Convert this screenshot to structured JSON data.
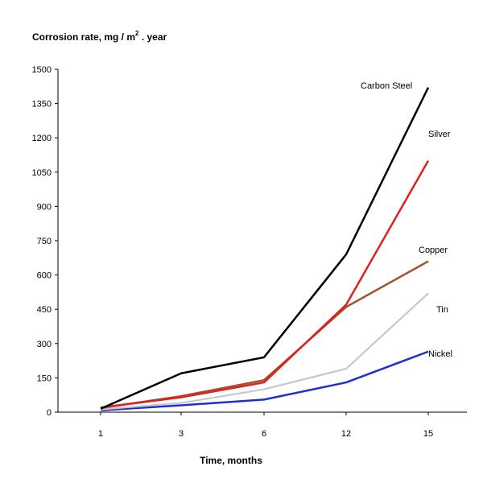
{
  "chart_data": {
    "type": "line",
    "ylabel": "Corrosion rate, mg / m",
    "ylabel_superscript": "2",
    "ylabel_suffix": " .  year",
    "xlabel": "Time, months",
    "categories": [
      "1",
      "3",
      "6",
      "12",
      "15"
    ],
    "ylim": [
      0,
      1500
    ],
    "yticks": [
      "0",
      "150",
      "300",
      "450",
      "600",
      "750",
      "900",
      "1050",
      "1200",
      "1350",
      "1500"
    ],
    "grid": false,
    "series": [
      {
        "name": "Carbon Steel",
        "values": [
          15,
          170,
          240,
          690,
          1420
        ],
        "color": "#000000"
      },
      {
        "name": "Silver",
        "values": [
          20,
          65,
          130,
          470,
          1100
        ],
        "color": "#e02020"
      },
      {
        "name": "Copper",
        "values": [
          18,
          70,
          140,
          460,
          660
        ],
        "color": "#a0522d"
      },
      {
        "name": "Tin",
        "values": [
          12,
          40,
          100,
          190,
          520
        ],
        "color": "#c8c8c8"
      },
      {
        "name": "Nickel",
        "values": [
          8,
          30,
          55,
          130,
          265
        ],
        "color": "#1f2fd0"
      }
    ]
  }
}
